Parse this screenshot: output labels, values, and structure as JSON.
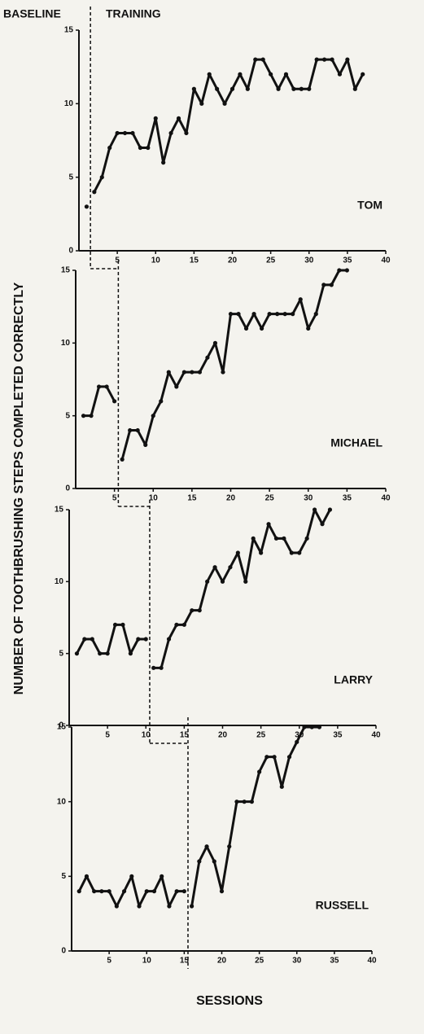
{
  "ylabel": "NUMBER OF TOOTHBRUSHING STEPS COMPLETED CORRECTLY",
  "xlabel": "SESSIONS",
  "phase_labels": [
    "BASELINE",
    "TRAINING"
  ],
  "chart_data": [
    {
      "type": "line",
      "title": "TOM",
      "color": "#111111",
      "phase_change": 1.5,
      "x": [
        1,
        2,
        3,
        4,
        5,
        6,
        7,
        8,
        9,
        10,
        11,
        12,
        13,
        14,
        15,
        16,
        17,
        18,
        19,
        20,
        21,
        22,
        23,
        24,
        25,
        26,
        27,
        28,
        29,
        30,
        31,
        32,
        33,
        34,
        35,
        36,
        37
      ],
      "values": [
        3,
        4,
        5,
        7,
        8,
        8,
        8,
        7,
        7,
        9,
        6,
        8,
        9,
        8,
        11,
        10,
        12,
        11,
        10,
        11,
        12,
        11,
        13,
        13,
        12,
        11,
        12,
        11,
        11,
        11,
        13,
        13,
        13,
        12,
        13,
        11,
        12
      ],
      "xlim": [
        0,
        40
      ],
      "ylim": [
        0,
        15
      ],
      "xticks": [
        5,
        10,
        15,
        20,
        25,
        30,
        35,
        40
      ],
      "yticks": [
        0,
        5,
        10,
        15
      ]
    },
    {
      "type": "line",
      "title": "MICHAEL",
      "color": "#111111",
      "phase_change": 5.5,
      "x": [
        1,
        2,
        3,
        4,
        5,
        6,
        7,
        8,
        9,
        10,
        11,
        12,
        13,
        14,
        15,
        16,
        17,
        18,
        19,
        20,
        21,
        22,
        23,
        24,
        25,
        26,
        27,
        28,
        29,
        30,
        31,
        32,
        33,
        34,
        35
      ],
      "values": [
        5,
        5,
        7,
        7,
        6,
        2,
        4,
        4,
        3,
        5,
        6,
        8,
        7,
        8,
        8,
        8,
        9,
        10,
        8,
        12,
        12,
        11,
        12,
        11,
        12,
        12,
        12,
        12,
        13,
        11,
        12,
        14,
        14,
        15,
        15
      ],
      "xlim": [
        0,
        40
      ],
      "ylim": [
        0,
        15
      ],
      "xticks": [
        5,
        10,
        15,
        20,
        25,
        30,
        35,
        40
      ],
      "yticks": [
        0,
        5,
        10,
        15
      ]
    },
    {
      "type": "line",
      "title": "LARRY",
      "color": "#111111",
      "phase_change": 10.5,
      "x": [
        1,
        2,
        3,
        4,
        5,
        6,
        7,
        8,
        9,
        10,
        11,
        12,
        13,
        14,
        15,
        16,
        17,
        18,
        19,
        20,
        21,
        22,
        23,
        24,
        25,
        26,
        27,
        28,
        29,
        30,
        31,
        32,
        33,
        34
      ],
      "values": [
        5,
        6,
        6,
        5,
        5,
        7,
        7,
        5,
        6,
        6,
        4,
        4,
        6,
        7,
        7,
        8,
        8,
        10,
        11,
        10,
        11,
        12,
        10,
        13,
        12,
        14,
        13,
        13,
        12,
        12,
        13,
        15,
        14,
        15
      ],
      "xlim": [
        0,
        40
      ],
      "ylim": [
        0,
        15
      ],
      "xticks": [
        5,
        10,
        15,
        20,
        25,
        30,
        35,
        40
      ],
      "yticks": [
        0,
        5,
        10,
        15
      ]
    },
    {
      "type": "line",
      "title": "RUSSELL",
      "color": "#111111",
      "phase_change": 15.5,
      "x": [
        1,
        2,
        3,
        4,
        5,
        6,
        7,
        8,
        9,
        10,
        11,
        12,
        13,
        14,
        15,
        16,
        17,
        18,
        19,
        20,
        21,
        22,
        23,
        24,
        25,
        26,
        27,
        28,
        29,
        30,
        31,
        32,
        33
      ],
      "values": [
        4,
        5,
        4,
        4,
        4,
        3,
        4,
        5,
        3,
        4,
        4,
        5,
        3,
        4,
        4,
        3,
        6,
        7,
        6,
        4,
        7,
        10,
        10,
        10,
        12,
        13,
        13,
        11,
        13,
        14,
        15,
        15,
        15
      ],
      "xlim": [
        0,
        40
      ],
      "ylim": [
        0,
        15
      ],
      "xticks": [
        5,
        10,
        15,
        20,
        25,
        30,
        35,
        40
      ],
      "yticks": [
        0,
        5,
        10,
        15
      ]
    }
  ]
}
